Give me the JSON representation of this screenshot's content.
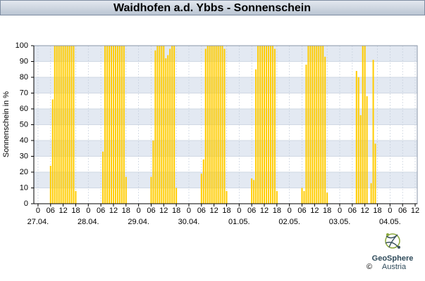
{
  "chart_data": {
    "type": "bar",
    "title": "Waidhofen a.d. Ybbs - Sonnenschein",
    "y_label": "Sonnenschein in %",
    "color": "#ffcc00",
    "grid": true,
    "x": [
      6,
      7,
      8,
      9,
      10,
      11,
      12,
      13,
      14,
      15,
      16,
      17,
      18,
      31,
      32,
      33,
      34,
      35,
      36,
      37,
      38,
      39,
      40,
      41,
      42,
      54,
      55,
      56,
      57,
      58,
      59,
      60,
      61,
      62,
      63,
      64,
      65,
      66,
      78,
      79,
      80,
      81,
      82,
      83,
      84,
      85,
      86,
      87,
      88,
      89,
      90,
      102,
      103,
      104,
      105,
      106,
      107,
      108,
      109,
      110,
      111,
      112,
      113,
      114,
      126,
      127,
      128,
      129,
      130,
      131,
      132,
      133,
      134,
      135,
      136,
      137,
      138,
      152,
      153,
      154,
      155,
      156,
      157,
      159,
      160,
      161
    ],
    "values": [
      24,
      66,
      100,
      100,
      100,
      100,
      100,
      100,
      100,
      100,
      100,
      100,
      8,
      33,
      100,
      100,
      100,
      100,
      100,
      100,
      100,
      100,
      100,
      100,
      17,
      17,
      40,
      97,
      100,
      100,
      100,
      100,
      92,
      94,
      98,
      100,
      100,
      10,
      19,
      28,
      98,
      100,
      100,
      100,
      100,
      100,
      100,
      100,
      100,
      98,
      8,
      16,
      15,
      85,
      100,
      100,
      100,
      100,
      100,
      100,
      100,
      100,
      98,
      8,
      10,
      8,
      88,
      100,
      100,
      100,
      100,
      100,
      100,
      100,
      100,
      93,
      7,
      84,
      80,
      56,
      100,
      100,
      68,
      13,
      91,
      38
    ],
    "xlim": [
      -2,
      181
    ],
    "xticks": [
      {
        "value": 0,
        "label": "0"
      },
      {
        "value": 6,
        "label": "06"
      },
      {
        "value": 12,
        "label": "12"
      },
      {
        "value": 18,
        "label": "18"
      },
      {
        "value": 24,
        "label": "0"
      },
      {
        "value": 30,
        "label": "06"
      },
      {
        "value": 36,
        "label": "12"
      },
      {
        "value": 42,
        "label": "18"
      },
      {
        "value": 48,
        "label": "0"
      },
      {
        "value": 54,
        "label": "06"
      },
      {
        "value": 60,
        "label": "12"
      },
      {
        "value": 66,
        "label": "18"
      },
      {
        "value": 72,
        "label": "0"
      },
      {
        "value": 78,
        "label": "06"
      },
      {
        "value": 84,
        "label": "12"
      },
      {
        "value": 90,
        "label": "18"
      },
      {
        "value": 96,
        "label": "0"
      },
      {
        "value": 102,
        "label": "06"
      },
      {
        "value": 108,
        "label": "12"
      },
      {
        "value": 114,
        "label": "18"
      },
      {
        "value": 120,
        "label": "0"
      },
      {
        "value": 126,
        "label": "06"
      },
      {
        "value": 132,
        "label": "12"
      },
      {
        "value": 138,
        "label": "18"
      },
      {
        "value": 144,
        "label": "0"
      },
      {
        "value": 150,
        "label": "06"
      },
      {
        "value": 156,
        "label": "12"
      },
      {
        "value": 162,
        "label": "18"
      },
      {
        "value": 168,
        "label": "0"
      },
      {
        "value": 174,
        "label": "06"
      },
      {
        "value": 180,
        "label": "12"
      }
    ],
    "date_labels": [
      {
        "value": 0,
        "label": "27.04."
      },
      {
        "value": 24,
        "label": "28.04."
      },
      {
        "value": 48,
        "label": "29.04."
      },
      {
        "value": 72,
        "label": "30.04."
      },
      {
        "value": 96,
        "label": "01.05."
      },
      {
        "value": 120,
        "label": "02.05."
      },
      {
        "value": 144,
        "label": "03.05."
      },
      {
        "value": 168,
        "label": "04.05."
      }
    ],
    "ylim": [
      0,
      100
    ],
    "yticks": [
      0,
      10,
      20,
      30,
      40,
      50,
      60,
      70,
      80,
      90,
      100
    ],
    "logo": {
      "name": "GeoSphere",
      "sub": "Austria",
      "copyright": "©"
    }
  }
}
